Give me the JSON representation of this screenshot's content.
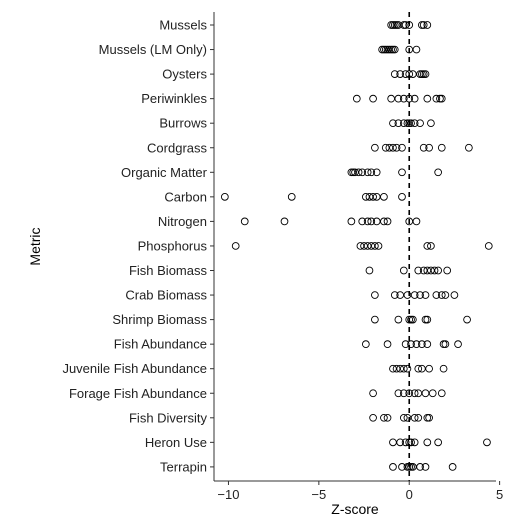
{
  "chart_data": {
    "type": "scatter",
    "xlabel": "Z-score",
    "ylabel": "Metric",
    "xlim": [
      -10.8,
      4.8
    ],
    "xticks": [
      -10,
      -5,
      0,
      5
    ],
    "reference_line": 0,
    "categories": [
      "Mussels",
      "Mussels (LM Only)",
      "Oysters",
      "Periwinkles",
      "Burrows",
      "Cordgrass",
      "Organic Matter",
      "Carbon",
      "Nitrogen",
      "Phosphorus",
      "Fish Biomass",
      "Crab Biomass",
      "Shrimp Biomass",
      "Fish Abundance",
      "Juvenile Fish Abundance",
      "Forage Fish Abundance",
      "Fish Diversity",
      "Heron Use",
      "Terrapin"
    ],
    "points": {
      "Mussels": [
        -1.0,
        -0.9,
        -0.8,
        -0.7,
        -0.6,
        -0.3,
        -0.2,
        0.0,
        0.7,
        0.8,
        1.0
      ],
      "Mussels (LM Only)": [
        -1.5,
        -1.4,
        -1.3,
        -1.2,
        -1.1,
        -1.0,
        -0.9,
        -0.8,
        0.0,
        0.4
      ],
      "Oysters": [
        -0.8,
        -0.5,
        -0.2,
        0.0,
        0.2,
        0.6,
        0.7,
        0.8,
        0.9
      ],
      "Periwinkles": [
        -2.9,
        -2.0,
        -1.0,
        -0.6,
        -0.3,
        0.0,
        0.3,
        1.0,
        1.5,
        1.7,
        1.8
      ],
      "Burrows": [
        -0.9,
        -0.6,
        -0.3,
        -0.1,
        0.0,
        0.1,
        0.3,
        0.6,
        1.2
      ],
      "Cordgrass": [
        -1.9,
        -1.3,
        -1.1,
        -0.9,
        -0.7,
        -0.4,
        0.8,
        1.1,
        1.8,
        3.3
      ],
      "Organic Matter": [
        -3.2,
        -3.1,
        -3.0,
        -2.8,
        -2.6,
        -2.3,
        -2.1,
        -1.8,
        -0.4,
        1.6
      ],
      "Carbon": [
        -10.2,
        -6.5,
        -2.4,
        -2.2,
        -2.0,
        -1.8,
        -1.4,
        -0.4
      ],
      "Nitrogen": [
        -9.1,
        -6.9,
        -3.2,
        -2.6,
        -2.3,
        -2.1,
        -1.8,
        -1.4,
        -1.2,
        0.0,
        0.4
      ],
      "Phosphorus": [
        -9.6,
        -2.7,
        -2.5,
        -2.3,
        -2.1,
        -1.9,
        -1.7,
        1.0,
        1.2,
        4.4
      ],
      "Fish Biomass": [
        -2.2,
        -0.3,
        0.5,
        0.8,
        1.0,
        1.2,
        1.4,
        1.6,
        2.1
      ],
      "Crab Biomass": [
        -1.9,
        -0.8,
        -0.5,
        -0.1,
        0.3,
        0.6,
        0.9,
        1.5,
        1.8,
        2.0,
        2.5
      ],
      "Shrimp Biomass": [
        -1.9,
        -0.6,
        0.0,
        0.1,
        0.2,
        0.9,
        1.0,
        3.2
      ],
      "Fish Abundance": [
        -2.4,
        -1.2,
        -0.2,
        0.1,
        0.4,
        0.7,
        1.0,
        1.9,
        2.0,
        2.7
      ],
      "Juvenile Fish Abundance": [
        -0.9,
        -0.7,
        -0.5,
        -0.3,
        -0.1,
        0.5,
        0.7,
        1.1,
        1.9
      ],
      "Forage Fish Abundance": [
        -2.0,
        -0.6,
        -0.3,
        0.0,
        0.3,
        0.5,
        0.9,
        1.3,
        1.8
      ],
      "Fish Diversity": [
        -2.0,
        -1.4,
        -1.2,
        -0.3,
        -0.1,
        0.3,
        0.5,
        1.0,
        1.1
      ],
      "Heron Use": [
        -0.9,
        -0.5,
        -0.2,
        0.0,
        0.1,
        0.3,
        1.0,
        1.6,
        4.3
      ],
      "Terrapin": [
        -0.9,
        -0.4,
        -0.1,
        0.0,
        0.1,
        0.2,
        0.6,
        0.9,
        2.4
      ]
    },
    "grid": false
  },
  "colors": {
    "marker_stroke": "#000000",
    "marker_fill": "none",
    "axis": "#333333",
    "text": "#222222",
    "reference_line": "#000000"
  }
}
